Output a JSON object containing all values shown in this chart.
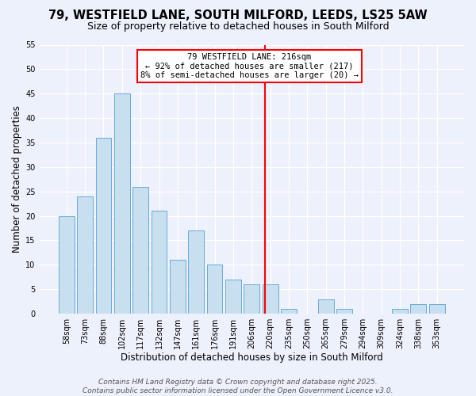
{
  "title_line1": "79, WESTFIELD LANE, SOUTH MILFORD, LEEDS, LS25 5AW",
  "title_line2": "Size of property relative to detached houses in South Milford",
  "xlabel": "Distribution of detached houses by size in South Milford",
  "ylabel": "Number of detached properties",
  "bar_labels": [
    "58sqm",
    "73sqm",
    "88sqm",
    "102sqm",
    "117sqm",
    "132sqm",
    "147sqm",
    "161sqm",
    "176sqm",
    "191sqm",
    "206sqm",
    "220sqm",
    "235sqm",
    "250sqm",
    "265sqm",
    "279sqm",
    "294sqm",
    "309sqm",
    "324sqm",
    "338sqm",
    "353sqm"
  ],
  "bar_values": [
    20,
    24,
    36,
    45,
    26,
    21,
    11,
    17,
    10,
    7,
    6,
    6,
    1,
    0,
    3,
    1,
    0,
    0,
    1,
    2,
    2
  ],
  "bar_color": "#c8dff0",
  "bar_edge_color": "#6aaad4",
  "vline_color": "red",
  "annotation_title": "79 WESTFIELD LANE: 216sqm",
  "annotation_line2": "← 92% of detached houses are smaller (217)",
  "annotation_line3": "8% of semi-detached houses are larger (20) →",
  "annotation_box_facecolor": "#ffffff",
  "annotation_box_edge": "red",
  "ylim": [
    0,
    55
  ],
  "yticks": [
    0,
    5,
    10,
    15,
    20,
    25,
    30,
    35,
    40,
    45,
    50,
    55
  ],
  "footer_line1": "Contains HM Land Registry data © Crown copyright and database right 2025.",
  "footer_line2": "Contains public sector information licensed under the Open Government Licence v3.0.",
  "bg_color": "#edf1fb",
  "grid_color": "white",
  "title_fontsize": 10.5,
  "subtitle_fontsize": 9,
  "axis_label_fontsize": 8.5,
  "tick_fontsize": 7,
  "annot_fontsize": 7.5,
  "footer_fontsize": 6.5
}
